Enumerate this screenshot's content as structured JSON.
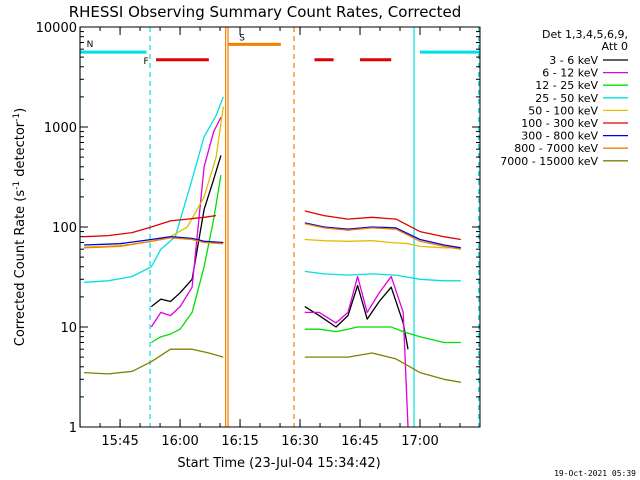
{
  "chart_data": {
    "type": "line",
    "title": "RHESSI Observing Summary Count Rates, Corrected",
    "xlabel": "Start Time (23-Jul-04 15:34:42)",
    "ylabel_main": "Corrected Count Rate (s",
    "ylabel_sup1": "-1",
    "ylabel_mid": " detector",
    "ylabel_sup2": "-1",
    "ylabel_end": ")",
    "yscale": "log",
    "ylim": [
      1,
      10000
    ],
    "xlim_minutes": [
      15.583,
      17.25
    ],
    "x_ticks": [
      {
        "t": 15.75,
        "label": "15:45"
      },
      {
        "t": 16.0,
        "label": "16:00"
      },
      {
        "t": 16.25,
        "label": "16:15"
      },
      {
        "t": 16.5,
        "label": "16:30"
      },
      {
        "t": 16.75,
        "label": "16:45"
      },
      {
        "t": 17.0,
        "label": "17:00"
      }
    ],
    "y_ticks": [
      {
        "v": 1,
        "label": "1"
      },
      {
        "v": 10,
        "label": "10"
      },
      {
        "v": 100,
        "label": "100"
      },
      {
        "v": 1000,
        "label": "1000"
      },
      {
        "v": 10000,
        "label": "10000"
      }
    ],
    "legend_header": [
      "Det 1,3,4,5,6,9,",
      "Att 0"
    ],
    "legend_position": "right",
    "series": [
      {
        "name": "3 - 6 keV",
        "color": "#000000",
        "pts": [
          [
            15.88,
            null
          ],
          [
            15.88,
            16
          ],
          [
            15.92,
            19
          ],
          [
            15.96,
            18
          ],
          [
            16.0,
            22
          ],
          [
            16.05,
            30
          ],
          [
            16.1,
            150
          ],
          [
            16.14,
            300
          ],
          [
            16.17,
            520
          ],
          [
            16.18,
            null
          ],
          [
            16.52,
            16
          ],
          [
            16.58,
            13
          ],
          [
            16.65,
            10
          ],
          [
            16.7,
            13
          ],
          [
            16.74,
            26
          ],
          [
            16.78,
            12
          ],
          [
            16.83,
            18
          ],
          [
            16.88,
            25
          ],
          [
            16.93,
            11
          ],
          [
            16.95,
            6
          ]
        ]
      },
      {
        "name": "6 - 12 keV",
        "color": "#e000e0",
        "pts": [
          [
            15.88,
            null
          ],
          [
            15.88,
            10
          ],
          [
            15.92,
            14
          ],
          [
            15.96,
            13
          ],
          [
            16.0,
            16
          ],
          [
            16.05,
            25
          ],
          [
            16.1,
            400
          ],
          [
            16.14,
            900
          ],
          [
            16.17,
            1250
          ],
          [
            16.18,
            null
          ],
          [
            16.52,
            14
          ],
          [
            16.58,
            14
          ],
          [
            16.65,
            11
          ],
          [
            16.7,
            14
          ],
          [
            16.74,
            32
          ],
          [
            16.78,
            14
          ],
          [
            16.83,
            22
          ],
          [
            16.88,
            32
          ],
          [
            16.93,
            14
          ],
          [
            16.95,
            1
          ]
        ]
      },
      {
        "name": "12 - 25 keV",
        "color": "#00e000",
        "pts": [
          [
            15.88,
            null
          ],
          [
            15.88,
            7
          ],
          [
            15.92,
            8
          ],
          [
            15.96,
            8.5
          ],
          [
            16.0,
            9.5
          ],
          [
            16.05,
            14
          ],
          [
            16.1,
            40
          ],
          [
            16.14,
            120
          ],
          [
            16.17,
            330
          ],
          [
            16.18,
            null
          ],
          [
            16.52,
            9.5
          ],
          [
            16.58,
            9.5
          ],
          [
            16.65,
            9
          ],
          [
            16.7,
            9.5
          ],
          [
            16.74,
            10
          ],
          [
            16.78,
            10
          ],
          [
            16.83,
            10
          ],
          [
            16.88,
            10
          ],
          [
            16.93,
            9
          ],
          [
            17.0,
            8
          ],
          [
            17.1,
            7
          ],
          [
            17.17,
            7
          ]
        ]
      },
      {
        "name": "25 - 50 keV",
        "color": "#00e0e0",
        "pts": [
          [
            15.6,
            28
          ],
          [
            15.7,
            29
          ],
          [
            15.8,
            32
          ],
          [
            15.88,
            40
          ],
          [
            15.92,
            60
          ],
          [
            15.98,
            80
          ],
          [
            16.05,
            300
          ],
          [
            16.1,
            800
          ],
          [
            16.15,
            1300
          ],
          [
            16.18,
            2000
          ],
          [
            16.18,
            null
          ],
          [
            16.52,
            36
          ],
          [
            16.6,
            34
          ],
          [
            16.7,
            33
          ],
          [
            16.8,
            34
          ],
          [
            16.9,
            33
          ],
          [
            17.0,
            30
          ],
          [
            17.1,
            29
          ],
          [
            17.17,
            29
          ]
        ]
      },
      {
        "name": "50 - 100 keV",
        "color": "#e0c000",
        "pts": [
          [
            15.6,
            63
          ],
          [
            15.75,
            65
          ],
          [
            15.88,
            72
          ],
          [
            15.96,
            80
          ],
          [
            16.03,
            100
          ],
          [
            16.1,
            200
          ],
          [
            16.15,
            500
          ],
          [
            16.18,
            1600
          ],
          [
            16.18,
            null
          ],
          [
            16.52,
            75
          ],
          [
            16.6,
            73
          ],
          [
            16.7,
            72
          ],
          [
            16.8,
            73
          ],
          [
            16.88,
            70
          ],
          [
            16.95,
            68
          ],
          [
            17.0,
            64
          ],
          [
            17.1,
            62
          ],
          [
            17.17,
            62
          ]
        ]
      },
      {
        "name": "100 - 300 keV",
        "color": "#e00000",
        "pts": [
          [
            15.6,
            80
          ],
          [
            15.7,
            82
          ],
          [
            15.8,
            88
          ],
          [
            15.88,
            100
          ],
          [
            15.96,
            115
          ],
          [
            16.03,
            120
          ],
          [
            16.1,
            125
          ],
          [
            16.15,
            130
          ],
          [
            16.18,
            null
          ],
          [
            16.52,
            145
          ],
          [
            16.6,
            130
          ],
          [
            16.7,
            120
          ],
          [
            16.8,
            125
          ],
          [
            16.9,
            120
          ],
          [
            17.0,
            90
          ],
          [
            17.1,
            80
          ],
          [
            17.17,
            75
          ]
        ]
      },
      {
        "name": "300 - 800 keV",
        "color": "#0000e0",
        "pts": [
          [
            15.6,
            66
          ],
          [
            15.75,
            68
          ],
          [
            15.88,
            75
          ],
          [
            15.96,
            80
          ],
          [
            16.05,
            77
          ],
          [
            16.1,
            72
          ],
          [
            16.18,
            70
          ],
          [
            16.18,
            null
          ],
          [
            16.52,
            110
          ],
          [
            16.6,
            100
          ],
          [
            16.7,
            95
          ],
          [
            16.8,
            100
          ],
          [
            16.9,
            98
          ],
          [
            17.0,
            75
          ],
          [
            17.1,
            66
          ],
          [
            17.17,
            62
          ]
        ]
      },
      {
        "name": "800 - 7000 keV",
        "color": "#f08000",
        "pts": [
          [
            15.6,
            62
          ],
          [
            15.75,
            64
          ],
          [
            15.88,
            72
          ],
          [
            15.96,
            78
          ],
          [
            16.05,
            75
          ],
          [
            16.1,
            70
          ],
          [
            16.18,
            68
          ],
          [
            16.18,
            null
          ],
          [
            16.52,
            108
          ],
          [
            16.6,
            98
          ],
          [
            16.7,
            93
          ],
          [
            16.8,
            98
          ],
          [
            16.9,
            95
          ],
          [
            17.0,
            72
          ],
          [
            17.1,
            64
          ],
          [
            17.17,
            60
          ]
        ]
      },
      {
        "name": "7000 - 15000 keV",
        "color": "#808000",
        "pts": [
          [
            15.6,
            3.5
          ],
          [
            15.7,
            3.4
          ],
          [
            15.8,
            3.6
          ],
          [
            15.88,
            4.5
          ],
          [
            15.96,
            6
          ],
          [
            16.05,
            6
          ],
          [
            16.12,
            5.5
          ],
          [
            16.18,
            5
          ],
          [
            16.18,
            null
          ],
          [
            16.52,
            5
          ],
          [
            16.6,
            5
          ],
          [
            16.7,
            5
          ],
          [
            16.8,
            5.5
          ],
          [
            16.9,
            4.8
          ],
          [
            17.0,
            3.5
          ],
          [
            17.1,
            3
          ],
          [
            17.17,
            2.8
          ]
        ]
      }
    ],
    "flags": [
      {
        "label": "N",
        "color": "#00e0e0",
        "segments": [
          [
            15.583,
            15.86
          ],
          [
            17.0,
            17.25
          ]
        ],
        "y": 5600
      },
      {
        "label": "F",
        "color": "#e00000",
        "segments": [
          [
            15.9,
            16.12
          ],
          [
            16.56,
            16.64
          ],
          [
            16.75,
            16.88
          ]
        ],
        "y": 4700
      },
      {
        "label": "S",
        "color": "#f08000",
        "segments": [
          [
            16.2,
            16.42
          ]
        ],
        "y": 6700
      }
    ],
    "vertical_lines": [
      {
        "t": 15.583,
        "color": "#00e0e0",
        "style": "solid"
      },
      {
        "t": 15.875,
        "color": "#00e0e0",
        "style": "dashed"
      },
      {
        "t": 16.19,
        "color": "#f08000",
        "style": "solid"
      },
      {
        "t": 16.2,
        "color": "#f08000",
        "style": "solid"
      },
      {
        "t": 16.475,
        "color": "#f08000",
        "style": "dashed"
      },
      {
        "t": 16.975,
        "color": "#00e0e0",
        "style": "solid"
      },
      {
        "t": 17.245,
        "color": "#00e0e0",
        "style": "dashed"
      }
    ]
  },
  "footer_timestamp": "19-Oct-2021 05:39"
}
